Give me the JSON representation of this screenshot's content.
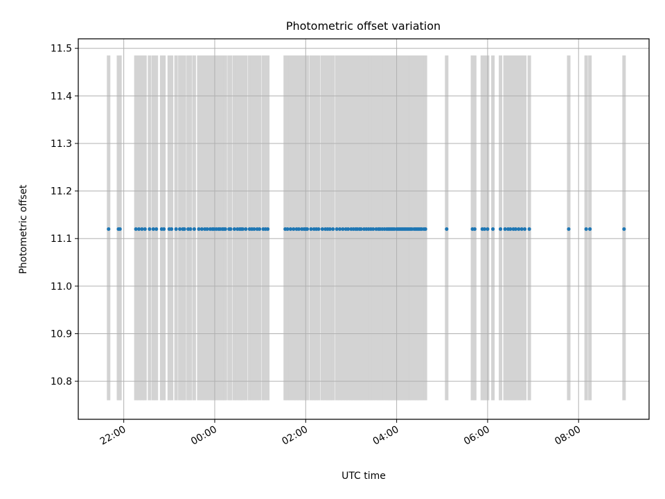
{
  "chart_data": {
    "type": "scatter",
    "title": "Photometric offset variation",
    "xlabel": "UTC time",
    "ylabel": "Photometric offset",
    "x_axis": "time",
    "x_range": [
      "21:00",
      "09:33"
    ],
    "ylim": [
      10.72,
      11.52
    ],
    "grid": true,
    "x_ticks": [
      "22:00",
      "00:00",
      "02:00",
      "04:00",
      "06:00",
      "08:00"
    ],
    "y_ticks": [
      "10.8",
      "10.9",
      "11.0",
      "11.1",
      "11.2",
      "11.3",
      "11.4",
      "11.5"
    ],
    "bands": {
      "ymin": 10.76,
      "ymax": 11.485,
      "color": "#d3d3d3",
      "times": [
        "21:40",
        "21:53",
        "21:55",
        "22:16",
        "22:20",
        "22:24",
        "22:28",
        "22:34",
        "22:39",
        "22:43",
        "22:50",
        "22:53",
        "23:00",
        "23:03",
        "23:09",
        "23:14",
        "23:18",
        "23:20",
        "23:25",
        "23:28",
        "23:33",
        "23:39",
        "23:43",
        "23:47",
        "23:50",
        "23:54",
        "23:57",
        "23:59",
        "00:02",
        "00:05",
        "00:07",
        "00:10",
        "00:12",
        "00:14",
        "00:19",
        "00:21",
        "00:26",
        "00:30",
        "00:33",
        "00:35",
        "00:37",
        "00:41",
        "00:46",
        "00:49",
        "00:52",
        "00:56",
        "00:59",
        "01:04",
        "01:07",
        "01:10",
        "01:33",
        "01:36",
        "01:40",
        "01:44",
        "01:48",
        "01:51",
        "01:55",
        "01:58",
        "02:00",
        "02:02",
        "02:07",
        "02:11",
        "02:14",
        "02:17",
        "02:22",
        "02:26",
        "02:29",
        "02:32",
        "02:36",
        "02:41",
        "02:45",
        "02:49",
        "02:53",
        "02:56",
        "03:00",
        "03:03",
        "03:06",
        "03:08",
        "03:11",
        "03:13",
        "03:17",
        "03:20",
        "03:23",
        "03:26",
        "03:29",
        "03:33",
        "03:36",
        "03:38",
        "03:41",
        "03:44",
        "03:47",
        "03:49",
        "03:51",
        "03:53",
        "03:55",
        "03:57",
        "04:00",
        "04:02",
        "04:04",
        "04:06",
        "04:08",
        "04:10",
        "04:12",
        "04:14",
        "04:16",
        "04:18",
        "04:20",
        "04:23",
        "04:25",
        "04:27",
        "04:29",
        "04:31",
        "04:33",
        "04:36",
        "04:38",
        "05:06",
        "05:40",
        "05:43",
        "05:53",
        "05:56",
        "06:00",
        "06:07",
        "06:17",
        "06:23",
        "06:27",
        "06:30",
        "06:34",
        "06:37",
        "06:41",
        "06:45",
        "06:49",
        "06:55",
        "07:47",
        "08:10",
        "08:15",
        "09:00"
      ]
    },
    "series": [
      {
        "color": "#1f77b4",
        "y": 11.12,
        "x": [
          "21:40",
          "21:53",
          "21:55",
          "22:16",
          "22:20",
          "22:24",
          "22:28",
          "22:34",
          "22:39",
          "22:43",
          "22:50",
          "22:53",
          "23:00",
          "23:03",
          "23:09",
          "23:14",
          "23:18",
          "23:20",
          "23:25",
          "23:28",
          "23:33",
          "23:39",
          "23:43",
          "23:47",
          "23:50",
          "23:54",
          "23:57",
          "23:59",
          "00:02",
          "00:05",
          "00:07",
          "00:10",
          "00:12",
          "00:14",
          "00:19",
          "00:21",
          "00:26",
          "00:30",
          "00:33",
          "00:35",
          "00:37",
          "00:41",
          "00:46",
          "00:49",
          "00:52",
          "00:56",
          "00:59",
          "01:04",
          "01:07",
          "01:10",
          "01:33",
          "01:36",
          "01:40",
          "01:44",
          "01:48",
          "01:51",
          "01:55",
          "01:58",
          "02:00",
          "02:02",
          "02:07",
          "02:11",
          "02:14",
          "02:17",
          "02:22",
          "02:26",
          "02:29",
          "02:32",
          "02:36",
          "02:41",
          "02:45",
          "02:49",
          "02:53",
          "02:56",
          "03:00",
          "03:03",
          "03:06",
          "03:08",
          "03:11",
          "03:13",
          "03:17",
          "03:20",
          "03:23",
          "03:26",
          "03:29",
          "03:33",
          "03:36",
          "03:38",
          "03:41",
          "03:44",
          "03:47",
          "03:49",
          "03:51",
          "03:53",
          "03:55",
          "03:57",
          "04:00",
          "04:02",
          "04:04",
          "04:06",
          "04:08",
          "04:10",
          "04:12",
          "04:14",
          "04:16",
          "04:18",
          "04:20",
          "04:23",
          "04:25",
          "04:27",
          "04:29",
          "04:31",
          "04:33",
          "04:36",
          "04:38",
          "05:06",
          "05:40",
          "05:43",
          "05:53",
          "05:56",
          "06:00",
          "06:07",
          "06:17",
          "06:23",
          "06:27",
          "06:30",
          "06:34",
          "06:37",
          "06:41",
          "06:45",
          "06:49",
          "06:55",
          "07:47",
          "08:10",
          "08:15",
          "09:00"
        ]
      }
    ]
  }
}
